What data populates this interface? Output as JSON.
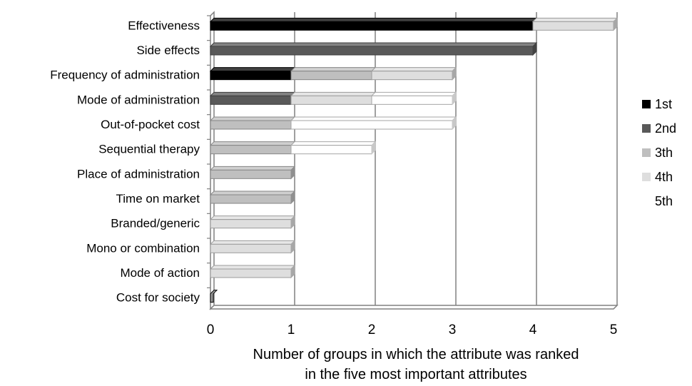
{
  "chart_data": {
    "type": "bar",
    "orientation": "horizontal",
    "stacked": true,
    "style": "3d",
    "title": "",
    "xlabel": "Number of groups in which the attribute was ranked",
    "xlabel_line2": "in the five most important attributes",
    "ylabel": "",
    "xlim": [
      0,
      5
    ],
    "xticks": [
      "0",
      "1",
      "2",
      "3",
      "4",
      "5"
    ],
    "grid": "vertical",
    "legend_position": "right",
    "categories": [
      "Effectiveness",
      "Side effects",
      "Frequency of administration",
      "Mode of administration",
      "Out-of-pocket cost",
      "Sequential therapy",
      "Place of administration",
      "Time on market",
      "Branded/generic",
      "Mono or combination",
      "Mode of action",
      "Cost for society"
    ],
    "series": [
      {
        "name": "1st",
        "color": "#000000",
        "values": [
          4,
          0,
          1,
          0,
          0,
          0,
          0,
          0,
          0,
          0,
          0,
          0
        ]
      },
      {
        "name": "2nd",
        "color": "#595959",
        "values": [
          0,
          4,
          0,
          1,
          0,
          0,
          0,
          0,
          0,
          0,
          0,
          0
        ]
      },
      {
        "name": "3th",
        "color": "#bfbfbf",
        "values": [
          0,
          0,
          1,
          0,
          1,
          1,
          1,
          1,
          0,
          0,
          0,
          0
        ]
      },
      {
        "name": "4th",
        "color": "#dedede",
        "values": [
          1,
          0,
          1,
          1,
          0,
          0,
          0,
          0,
          1,
          1,
          1,
          0
        ]
      },
      {
        "name": "5th",
        "color": "#ffffff",
        "values": [
          0,
          0,
          0,
          1,
          2,
          1,
          0,
          0,
          0,
          0,
          0,
          0
        ]
      }
    ]
  }
}
